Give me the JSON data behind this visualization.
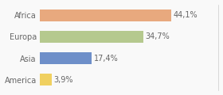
{
  "categories": [
    "Africa",
    "Europa",
    "Asia",
    "America"
  ],
  "values": [
    44.1,
    34.7,
    17.4,
    3.9
  ],
  "labels": [
    "44,1%",
    "34,7%",
    "17,4%",
    "3,9%"
  ],
  "bar_colors": [
    "#e8a97e",
    "#b5c98e",
    "#6e8fc9",
    "#f0d060"
  ],
  "background_color": "#f9f9f9",
  "border_color": "#cccccc",
  "xlim": [
    0,
    60
  ],
  "label_fontsize": 7.0,
  "tick_fontsize": 7.0,
  "label_color": "#666666",
  "bar_height": 0.55
}
